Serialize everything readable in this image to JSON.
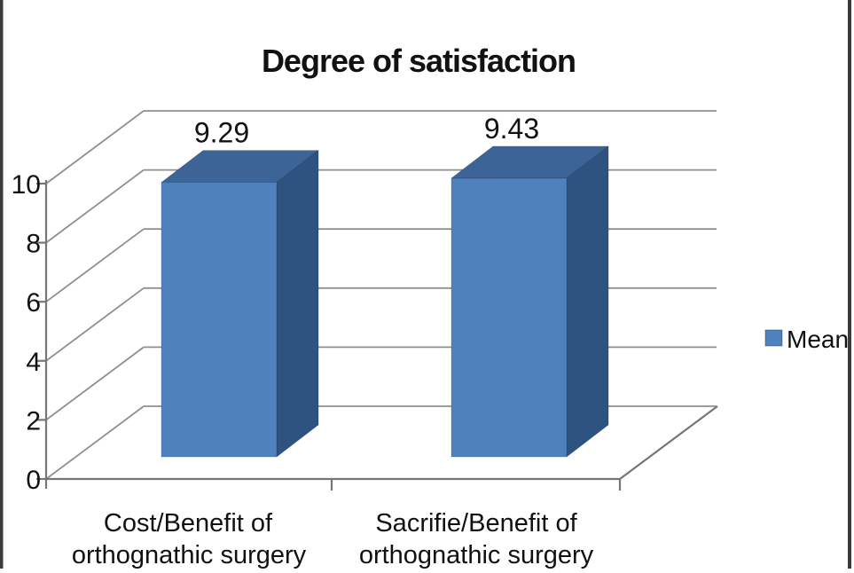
{
  "figure": {
    "background": "#ffffff",
    "border_color": "#3b3b3b"
  },
  "chart_data": {
    "type": "bar",
    "projection": "3d",
    "title": "Degree of satisfaction",
    "categories": [
      "Cost/Benefit of orthognathic surgery",
      "Sacrifie/Benefit of orthognathic surgery"
    ],
    "categories_lines": [
      [
        "Cost/Benefit of",
        "orthognathic surgery"
      ],
      [
        "Sacrifie/Benefit of",
        "orthognathic surgery"
      ]
    ],
    "series": [
      {
        "name": "Mean",
        "values": [
          9.29,
          9.43
        ]
      }
    ],
    "value_labels": [
      "9.29",
      "9.43"
    ],
    "xlabel": "",
    "ylabel": "",
    "ylim": [
      0,
      10
    ],
    "yticks": [
      0,
      2,
      4,
      6,
      8,
      10
    ],
    "grid": true,
    "legend_position": "right",
    "colors": {
      "bar_front": "#4f81bd",
      "bar_top": "#3c6496",
      "bar_side": "#2e5380",
      "gridline": "#8f8f8f",
      "axis": "#767676",
      "text": "#111111"
    }
  },
  "legend": {
    "label": "Mean",
    "swatch_color": "#4f81bd"
  }
}
